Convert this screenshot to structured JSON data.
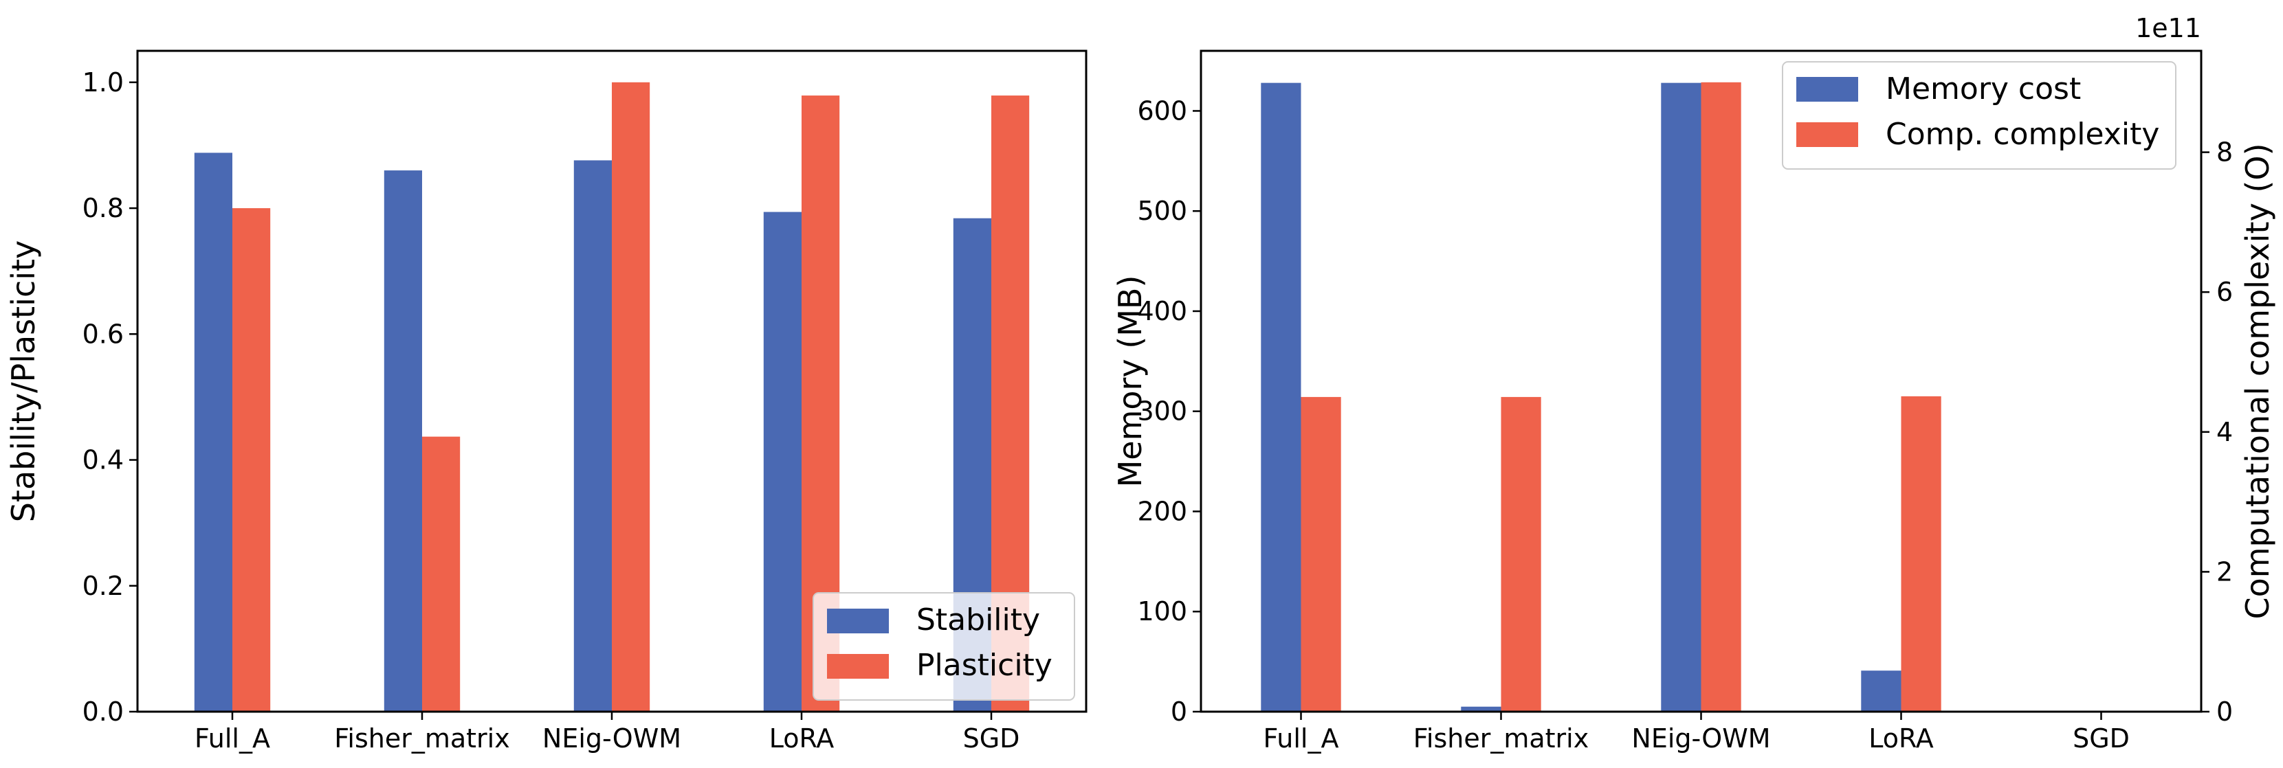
{
  "colors": {
    "series_a": "#4a69b3",
    "series_b": "#ef624b"
  },
  "chart_data": [
    {
      "type": "bar",
      "categories": [
        "Full_A",
        "Fisher_matrix",
        "NEig-OWM",
        "LoRA",
        "SGD"
      ],
      "series": [
        {
          "name": "Stability",
          "values": [
            0.888,
            0.86,
            0.876,
            0.794,
            0.784
          ]
        },
        {
          "name": "Plasticity",
          "values": [
            0.8,
            0.437,
            1.0,
            0.979,
            0.979
          ]
        }
      ],
      "ylabel": "Stability/Plasticity",
      "ylim": [
        0,
        1.05
      ],
      "yticks": [
        "0.0",
        "0.2",
        "0.4",
        "0.6",
        "0.8",
        "1.0"
      ],
      "legend": "lower-right"
    },
    {
      "type": "bar",
      "categories": [
        "Full_A",
        "Fisher_matrix",
        "NEig-OWM",
        "LoRA",
        "SGD"
      ],
      "series": [
        {
          "name": "Memory cost",
          "axis": "left",
          "values": [
            628,
            5,
            628,
            41,
            0
          ]
        },
        {
          "name": "Comp. complexity",
          "axis": "right",
          "values": [
            4.5,
            4.5,
            9.0,
            4.51,
            0
          ]
        }
      ],
      "ylabel": "Memory (MB)",
      "ylim": [
        0,
        660
      ],
      "yticks": [
        "0",
        "100",
        "200",
        "300",
        "400",
        "500",
        "600"
      ],
      "ylabel_right": "Computational complexity (O)",
      "ylim_right": [
        0,
        9.45
      ],
      "yticks_right": [
        "0",
        "2",
        "4",
        "6",
        "8"
      ],
      "right_axis_offset": "1e11",
      "legend": "top-right"
    }
  ]
}
